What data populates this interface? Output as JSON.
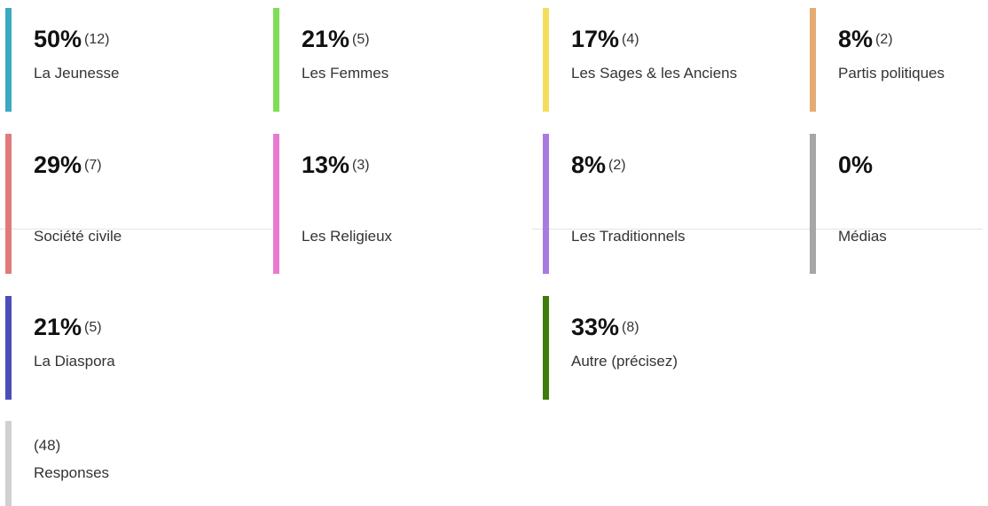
{
  "items": [
    {
      "percent": "50%",
      "count": "(12)",
      "label": "La Jeunesse",
      "color": "#3aa9c2"
    },
    {
      "percent": "21%",
      "count": "(5)",
      "label": "Les Femmes",
      "color": "#7edc55"
    },
    {
      "percent": "17%",
      "count": "(4)",
      "label": "Les Sages & les Anciens",
      "color": "#f5dd5c"
    },
    {
      "percent": "8%",
      "count": "(2)",
      "label": "Partis politiques",
      "color": "#e5ab74"
    },
    {
      "percent": "29%",
      "count": "(7)",
      "label": "Société civile",
      "color": "#e07b7b"
    },
    {
      "percent": "13%",
      "count": "(3)",
      "label": "Les Religieux",
      "color": "#e77bd2"
    },
    {
      "percent": "8%",
      "count": "(2)",
      "label": "Les Traditionnels",
      "color": "#a87be2"
    },
    {
      "percent": "0%",
      "label": "Médias",
      "color": "#a6a6a6"
    },
    {
      "percent": "21%",
      "count": "(5)",
      "label": "La Diaspora",
      "color": "#4a4eb9"
    },
    {
      "percent": "33%",
      "count": "(8)",
      "label": "Autre (précisez)",
      "color": "#3f7c0a"
    }
  ],
  "responses": {
    "count": "(48)",
    "label": "Responses",
    "color": "#d0d0d0"
  }
}
